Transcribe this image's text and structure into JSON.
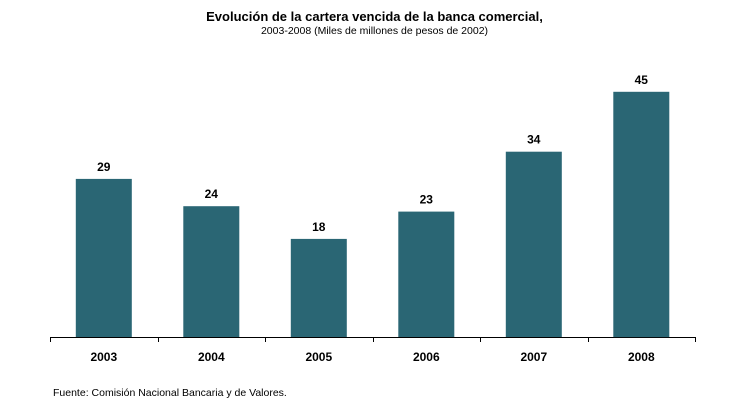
{
  "chart_data": {
    "type": "bar",
    "title": "Evolución de la cartera vencida de la banca comercial,",
    "subtitle": "2003-2008  (Miles de millones de pesos de 2002)",
    "categories": [
      "2003",
      "2004",
      "2005",
      "2006",
      "2007",
      "2008"
    ],
    "values": [
      29,
      24,
      18,
      23,
      34,
      45
    ],
    "data_labels": [
      "29",
      "24",
      "18",
      "23",
      "34",
      "45"
    ],
    "xlabel": "",
    "ylabel": "",
    "ylim": [
      0,
      50
    ],
    "grid": false,
    "legend": "none",
    "bar_color": "#2A6674",
    "axis_color": "#000000"
  },
  "footer": {
    "source": "Fuente: Comisión Nacional Bancaria y de Valores."
  }
}
